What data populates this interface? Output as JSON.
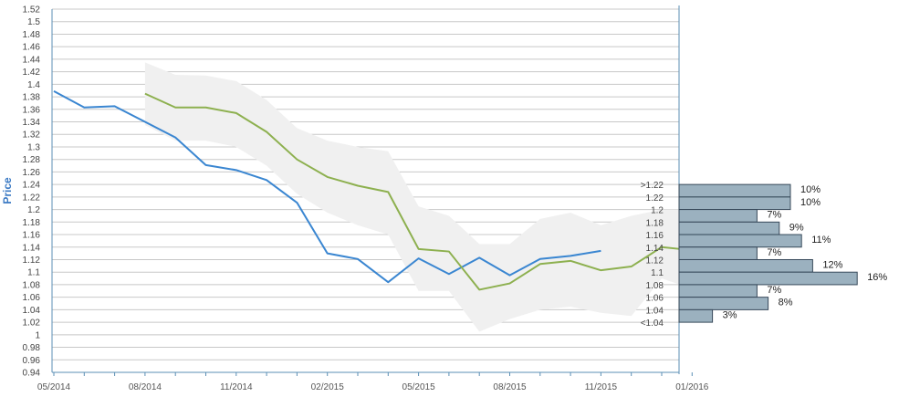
{
  "chart_data": {
    "type": "line",
    "ylabel": "Price",
    "ylim": [
      0.94,
      1.52
    ],
    "ystep": 0.02,
    "yticks": [
      "0.94",
      "0.96",
      "0.98",
      "1",
      "1.02",
      "1.04",
      "1.06",
      "1.08",
      "1.1",
      "1.12",
      "1.14",
      "1.16",
      "1.18",
      "1.2",
      "1.22",
      "1.24",
      "1.26",
      "1.28",
      "1.3",
      "1.32",
      "1.34",
      "1.36",
      "1.38",
      "1.4",
      "1.42",
      "1.44",
      "1.46",
      "1.48",
      "1.5",
      "1.52"
    ],
    "xticks": [
      "05/2014",
      "08/2014",
      "11/2014",
      "02/2015",
      "05/2015",
      "08/2015",
      "11/2015",
      "01/2016"
    ],
    "grid": true,
    "colors": {
      "actual": "#3a86d1",
      "forecast": "#8db04f",
      "band": "#f0f0f0",
      "bar_fill": "#9bb1bf",
      "bar_stroke": "#37495a",
      "grid": "#c8c8c8",
      "axis": "#5b8fb5"
    },
    "series": [
      {
        "key": "actual",
        "points": [
          [
            0,
            1.389
          ],
          [
            1,
            1.363
          ],
          [
            2,
            1.365
          ],
          [
            4,
            1.315
          ],
          [
            5,
            1.271
          ],
          [
            6,
            1.263
          ],
          [
            7,
            1.247
          ],
          [
            8,
            1.211
          ],
          [
            9,
            1.13
          ],
          [
            10,
            1.121
          ],
          [
            11,
            1.084
          ],
          [
            12,
            1.122
          ],
          [
            13,
            1.097
          ],
          [
            14,
            1.123
          ],
          [
            15,
            1.095
          ],
          [
            16,
            1.121
          ],
          [
            17,
            1.126
          ],
          [
            18,
            1.134
          ]
        ]
      },
      {
        "key": "forecast",
        "points": [
          [
            3,
            1.385
          ],
          [
            4,
            1.363
          ],
          [
            5,
            1.363
          ],
          [
            6,
            1.354
          ],
          [
            7,
            1.324
          ],
          [
            8,
            1.28
          ],
          [
            9,
            1.252
          ],
          [
            10,
            1.238
          ],
          [
            11,
            1.228
          ],
          [
            12,
            1.137
          ],
          [
            13,
            1.133
          ],
          [
            14,
            1.072
          ],
          [
            15,
            1.082
          ],
          [
            16,
            1.113
          ],
          [
            17,
            1.118
          ],
          [
            18,
            1.103
          ],
          [
            19,
            1.109
          ],
          [
            20,
            1.14
          ],
          [
            20.6,
            1.137
          ]
        ]
      }
    ],
    "band": {
      "x": [
        3,
        4,
        5,
        6,
        7,
        8,
        9,
        10,
        11,
        12,
        13,
        14,
        15,
        16,
        17,
        18,
        19,
        20,
        20.6
      ],
      "upper": [
        1.435,
        1.415,
        1.414,
        1.405,
        1.375,
        1.33,
        1.31,
        1.3,
        1.293,
        1.205,
        1.19,
        1.145,
        1.145,
        1.185,
        1.195,
        1.175,
        1.19,
        1.2,
        1.2
      ],
      "lower": [
        1.335,
        1.31,
        1.31,
        1.3,
        1.27,
        1.225,
        1.195,
        1.175,
        1.16,
        1.07,
        1.07,
        1.005,
        1.025,
        1.04,
        1.045,
        1.035,
        1.03,
        1.09,
        1.08
      ]
    },
    "distribution": {
      "categories": [
        ">1.22",
        "1.22",
        "1.2",
        "1.18",
        "1.16",
        "1.14",
        "1.12",
        "1.1",
        "1.08",
        "1.06",
        "1.04",
        "<1.04"
      ],
      "values": [
        10,
        10,
        7,
        9,
        11,
        7,
        12,
        16,
        7,
        8,
        3
      ],
      "labels": [
        "10%",
        "10%",
        "7%",
        "9%",
        "11%",
        "7%",
        "12%",
        "16%",
        "7%",
        "8%",
        "3%"
      ]
    }
  }
}
